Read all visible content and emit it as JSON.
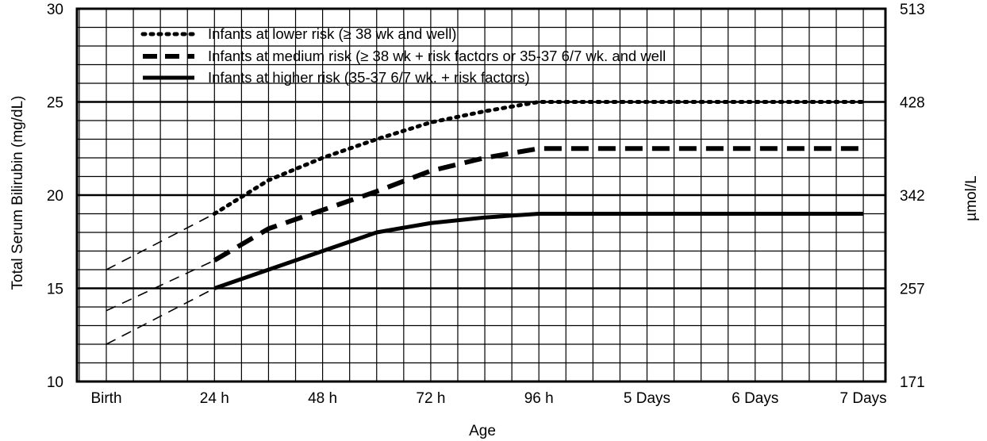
{
  "chart_data": {
    "type": "line",
    "xlabel": "Age",
    "ylabel": "Total Serum Bilirubin (mg/dL)",
    "y2label": "µmol/L",
    "categories": [
      "Birth",
      "24 h",
      "48 h",
      "72 h",
      "96 h",
      "5 Days",
      "6 Days",
      "7 Days"
    ],
    "ylim": [
      10,
      30
    ],
    "y_ticks": [
      10,
      15,
      20,
      25,
      30
    ],
    "y2_ticks": [
      "171",
      "257",
      "342",
      "428",
      "513"
    ],
    "grid": true,
    "legend_position": "top-left",
    "series": [
      {
        "name": "Infants at lower risk (≥ 38 wk and well)",
        "style": "dotted",
        "x": [
          0,
          1,
          1.5,
          2,
          2.5,
          3,
          3.5,
          4,
          5,
          6,
          7
        ],
        "y": [
          16,
          19,
          20.8,
          22.0,
          23.0,
          23.9,
          24.5,
          25,
          25,
          25,
          25
        ]
      },
      {
        "name": "Infants at medium risk (≥ 38 wk + risk factors or 35-37 6/7 wk. and well",
        "style": "dashed",
        "x": [
          0,
          1,
          1.5,
          2,
          2.5,
          3,
          3.5,
          4,
          5,
          6,
          7
        ],
        "y": [
          13.8,
          16.5,
          18.2,
          19.2,
          20.2,
          21.3,
          22.0,
          22.5,
          22.5,
          22.5,
          22.5
        ]
      },
      {
        "name": "Infants at higher risk (35-37 6/7 wk. + risk factors)",
        "style": "solid",
        "x": [
          0,
          1,
          1.5,
          2,
          2.5,
          3,
          3.5,
          4,
          5,
          6,
          7
        ],
        "y": [
          12,
          15,
          16,
          17,
          18,
          18.5,
          18.8,
          19,
          19,
          19,
          19
        ]
      }
    ]
  }
}
